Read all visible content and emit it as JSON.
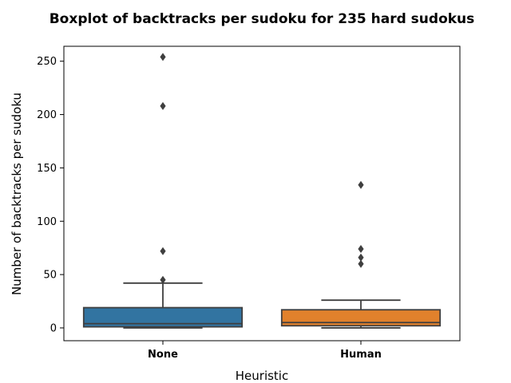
{
  "chart_data": {
    "type": "boxplot",
    "title": "Boxplot of backtracks per sudoku for 235 hard sudokus",
    "xlabel": "Heuristic",
    "ylabel": "Number of backtracks per sudoku",
    "ylim": [
      -12,
      264
    ],
    "yticks": [
      0,
      50,
      100,
      150,
      200,
      250
    ],
    "grid": false,
    "categories": [
      "None",
      "Human"
    ],
    "series": [
      {
        "category": "None",
        "color": "#3274a1",
        "min": 0,
        "q1": 1,
        "median": 4,
        "q3": 19,
        "whisker_high": 42,
        "outliers": [
          45,
          72,
          208,
          254
        ]
      },
      {
        "category": "Human",
        "color": "#e1812c",
        "min": 0,
        "q1": 2,
        "median": 5,
        "q3": 17,
        "whisker_high": 26,
        "outliers": [
          60,
          66,
          74,
          134
        ]
      }
    ]
  }
}
